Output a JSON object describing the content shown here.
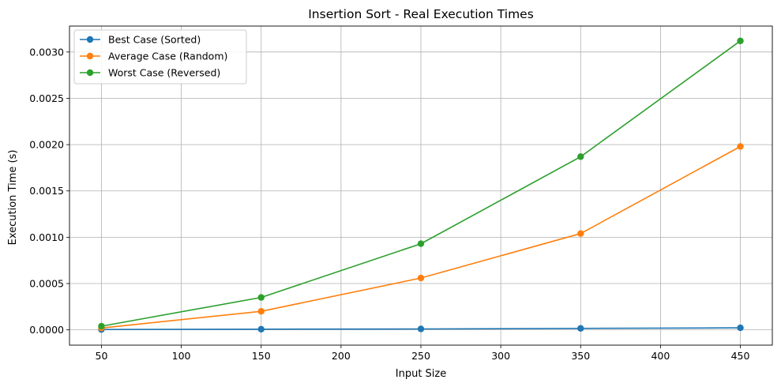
{
  "chart_data": {
    "type": "line",
    "title": "Insertion Sort - Real Execution Times",
    "xlabel": "Input Size",
    "ylabel": "Execution Time (s)",
    "x": [
      50,
      150,
      250,
      350,
      450
    ],
    "xlim": [
      30,
      470
    ],
    "ylim": [
      -0.000165,
      0.00328
    ],
    "xticks": [
      50,
      100,
      150,
      200,
      250,
      300,
      350,
      400,
      450
    ],
    "yticks": [
      0.0,
      0.0005,
      0.001,
      0.0015,
      0.002,
      0.0025,
      0.003
    ],
    "ytick_labels": [
      "0.0000",
      "0.0005",
      "0.0010",
      "0.0015",
      "0.0020",
      "0.0025",
      "0.0030"
    ],
    "grid": true,
    "legend_position": "top-left",
    "marker": "circle",
    "series": [
      {
        "name": "Best Case (Sorted)",
        "color": "#1f77b4",
        "values": [
          4e-06,
          7e-06,
          1e-05,
          1.6e-05,
          2.2e-05
        ]
      },
      {
        "name": "Average Case (Random)",
        "color": "#ff7f0e",
        "values": [
          2e-05,
          0.0002,
          0.00056,
          0.00104,
          0.00198
        ]
      },
      {
        "name": "Worst Case (Reversed)",
        "color": "#2ca02c",
        "values": [
          4e-05,
          0.00035,
          0.00093,
          0.00187,
          0.00312
        ]
      }
    ]
  }
}
